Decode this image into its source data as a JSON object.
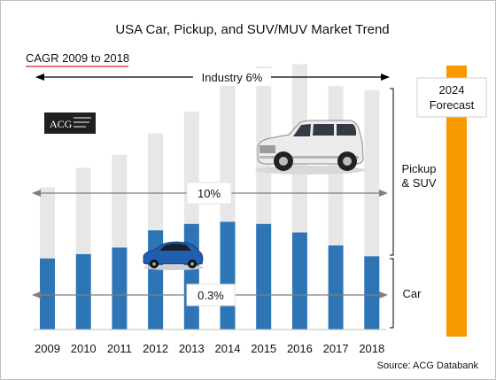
{
  "chart_data": {
    "type": "bar",
    "title": "USA Car, Pickup, and SUV/MUV Market Trend",
    "categories": [
      "2009",
      "2010",
      "2011",
      "2012",
      "2013",
      "2014",
      "2015",
      "2016",
      "2017",
      "2018"
    ],
    "series": [
      {
        "name": "Car",
        "color": "#2E75B6",
        "values": [
          33,
          35,
          38,
          46,
          49,
          50,
          49,
          45,
          39,
          34
        ]
      },
      {
        "name": "Pickup & SUV",
        "color": "#E7E7E7",
        "values": [
          33,
          40,
          43,
          45,
          52,
          63,
          73,
          78,
          74,
          77
        ]
      }
    ],
    "ylim": [
      0,
      115
    ],
    "cagr_label": "CAGR 2009 to 2018",
    "annotations": {
      "industry": "Industry 6%",
      "pickup_suv_growth": "10%",
      "car_growth": "0.3%",
      "pickup_suv_label": "Pickup\n& SUV",
      "car_label": "Car"
    },
    "forecast": {
      "label": "2024\nForecast",
      "color": "#F79A00"
    },
    "source": "Source: ACG Databank",
    "logo_text": "ACG",
    "icons": [
      "suv-illustration",
      "sedan-illustration",
      "acg-logo"
    ]
  }
}
